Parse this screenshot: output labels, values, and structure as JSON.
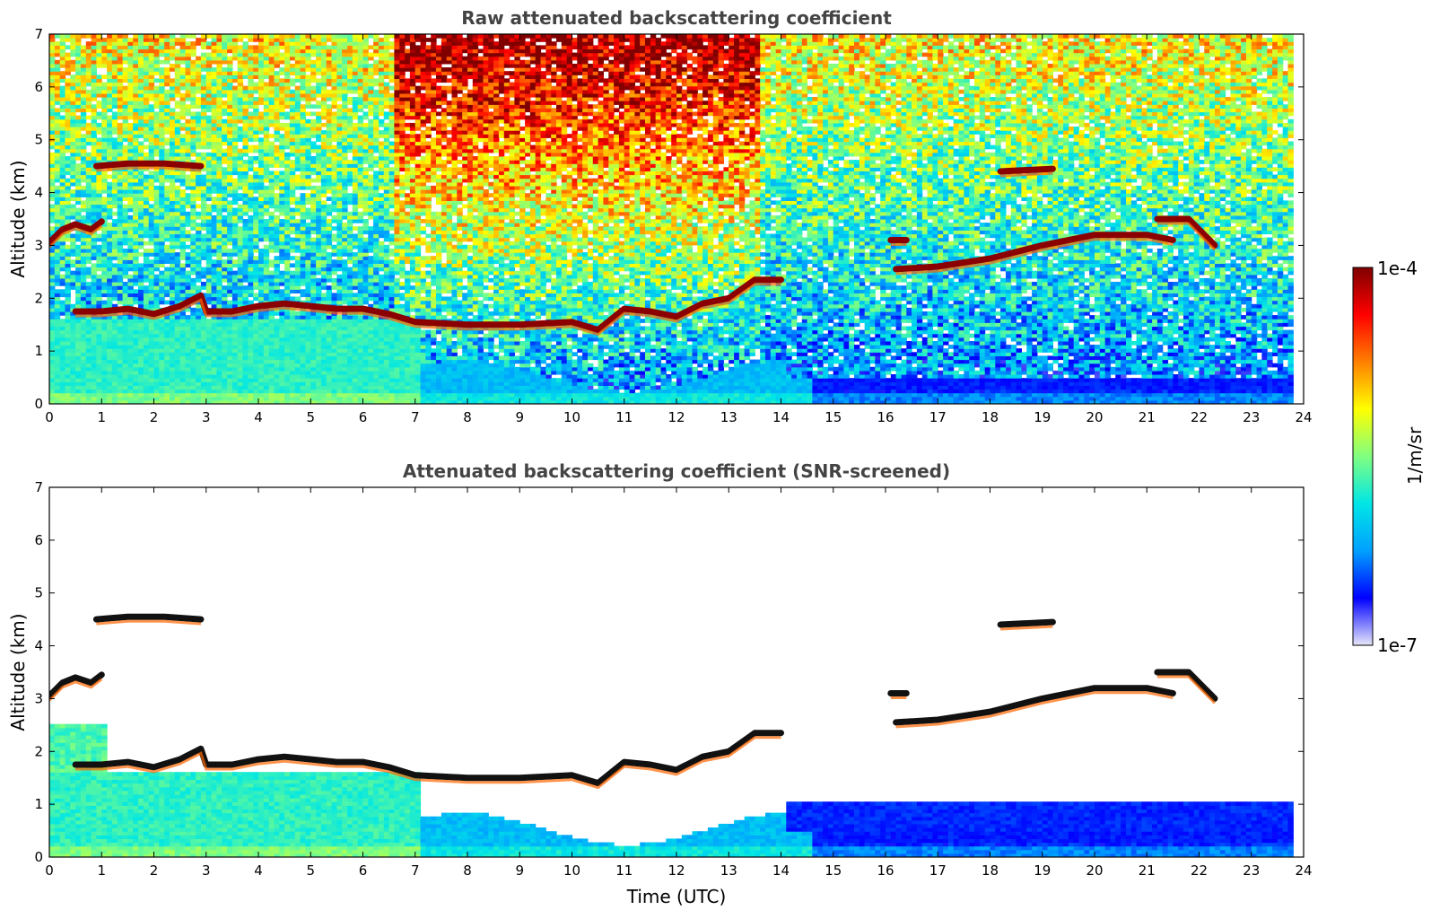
{
  "chart_data": [
    {
      "type": "heatmap",
      "title": "Raw attenuated backscattering coefficient",
      "xlabel": "",
      "ylabel": "Altitude (km)",
      "xlim": [
        0,
        24
      ],
      "ylim": [
        0,
        7
      ],
      "xticks": [
        "0",
        "1",
        "2",
        "3",
        "4",
        "5",
        "6",
        "7",
        "8",
        "9",
        "10",
        "11",
        "12",
        "13",
        "14",
        "15",
        "16",
        "17",
        "18",
        "19",
        "20",
        "21",
        "22",
        "23",
        "24"
      ],
      "yticks": [
        "0",
        "1",
        "2",
        "3",
        "4",
        "5",
        "6",
        "7"
      ],
      "data_end_time": 23.8,
      "screened": false,
      "cloud_layers": [
        {
          "t": [
            0.0,
            0.25,
            0.5,
            0.8,
            1.0
          ],
          "alt": [
            3.05,
            3.3,
            3.4,
            3.3,
            3.45
          ]
        },
        {
          "t": [
            0.5,
            1.0,
            1.5,
            2.0,
            2.5,
            2.9,
            3.0,
            3.5,
            4.0,
            4.5,
            5.0,
            5.5,
            6.0,
            6.5,
            7.0,
            8.0,
            9.0,
            10.0,
            10.5,
            11.0,
            11.5,
            12.0,
            12.5,
            13.0,
            13.5,
            14.0
          ],
          "alt": [
            1.75,
            1.75,
            1.8,
            1.7,
            1.85,
            2.05,
            1.75,
            1.75,
            1.85,
            1.9,
            1.85,
            1.8,
            1.8,
            1.7,
            1.55,
            1.5,
            1.5,
            1.55,
            1.4,
            1.8,
            1.75,
            1.65,
            1.9,
            2.0,
            2.35,
            2.35
          ]
        },
        {
          "t": [
            0.9,
            1.5,
            2.2,
            2.9
          ],
          "alt": [
            4.5,
            4.55,
            4.55,
            4.5
          ]
        },
        {
          "t": [
            16.2,
            17.0,
            18.0,
            19.0,
            20.0,
            21.0,
            21.5
          ],
          "alt": [
            2.55,
            2.6,
            2.75,
            3.0,
            3.2,
            3.2,
            3.1
          ]
        },
        {
          "t": [
            21.2,
            21.8,
            22.3
          ],
          "alt": [
            3.5,
            3.5,
            3.0
          ]
        },
        {
          "t": [
            16.1,
            16.4
          ],
          "alt": [
            3.1,
            3.1
          ]
        },
        {
          "t": [
            18.2,
            19.2
          ],
          "alt": [
            4.4,
            4.45
          ]
        }
      ]
    },
    {
      "type": "heatmap",
      "title": "Attenuated backscattering coefficient (SNR-screened)",
      "xlabel": "Time (UTC)",
      "ylabel": "Altitude (km)",
      "xlim": [
        0,
        24
      ],
      "ylim": [
        0,
        7
      ],
      "xticks": [
        "0",
        "1",
        "2",
        "3",
        "4",
        "5",
        "6",
        "7",
        "8",
        "9",
        "10",
        "11",
        "12",
        "13",
        "14",
        "15",
        "16",
        "17",
        "18",
        "19",
        "20",
        "21",
        "22",
        "23",
        "24"
      ],
      "yticks": [
        "0",
        "1",
        "2",
        "3",
        "4",
        "5",
        "6",
        "7"
      ],
      "data_end_time": 23.8,
      "screened": true,
      "cloud_layers": [
        {
          "t": [
            0.0,
            0.25,
            0.5,
            0.8,
            1.0
          ],
          "alt": [
            3.05,
            3.3,
            3.4,
            3.3,
            3.45
          ]
        },
        {
          "t": [
            0.5,
            1.0,
            1.5,
            2.0,
            2.5,
            2.9,
            3.0,
            3.5,
            4.0,
            4.5,
            5.0,
            5.5,
            6.0,
            6.5,
            7.0,
            8.0,
            9.0,
            10.0,
            10.5,
            11.0,
            11.5,
            12.0,
            12.5,
            13.0,
            13.5,
            14.0
          ],
          "alt": [
            1.75,
            1.75,
            1.8,
            1.7,
            1.85,
            2.05,
            1.75,
            1.75,
            1.85,
            1.9,
            1.85,
            1.8,
            1.8,
            1.7,
            1.55,
            1.5,
            1.5,
            1.55,
            1.4,
            1.8,
            1.75,
            1.65,
            1.9,
            2.0,
            2.35,
            2.35
          ]
        },
        {
          "t": [
            0.9,
            1.5,
            2.2,
            2.9
          ],
          "alt": [
            4.5,
            4.55,
            4.55,
            4.5
          ]
        },
        {
          "t": [
            16.2,
            17.0,
            18.0,
            19.0,
            20.0,
            21.0,
            21.5
          ],
          "alt": [
            2.55,
            2.6,
            2.75,
            3.0,
            3.2,
            3.2,
            3.1
          ]
        },
        {
          "t": [
            21.2,
            21.8,
            22.3
          ],
          "alt": [
            3.5,
            3.5,
            3.0
          ]
        },
        {
          "t": [
            16.1,
            16.4
          ],
          "alt": [
            3.1,
            3.1
          ]
        },
        {
          "t": [
            18.2,
            19.2
          ],
          "alt": [
            4.4,
            4.45
          ]
        }
      ]
    }
  ],
  "colorbar": {
    "label": "1/m/sr",
    "max_label": "1e-4",
    "min_label": "1e-7",
    "scale": "log",
    "range": [
      1e-07,
      0.0001
    ],
    "colormap": "jet",
    "colors": [
      "#e6e6fa",
      "#0000ff",
      "#00a0ff",
      "#00e6e6",
      "#80ff80",
      "#ffff00",
      "#ff8000",
      "#ff0000",
      "#800000"
    ]
  }
}
